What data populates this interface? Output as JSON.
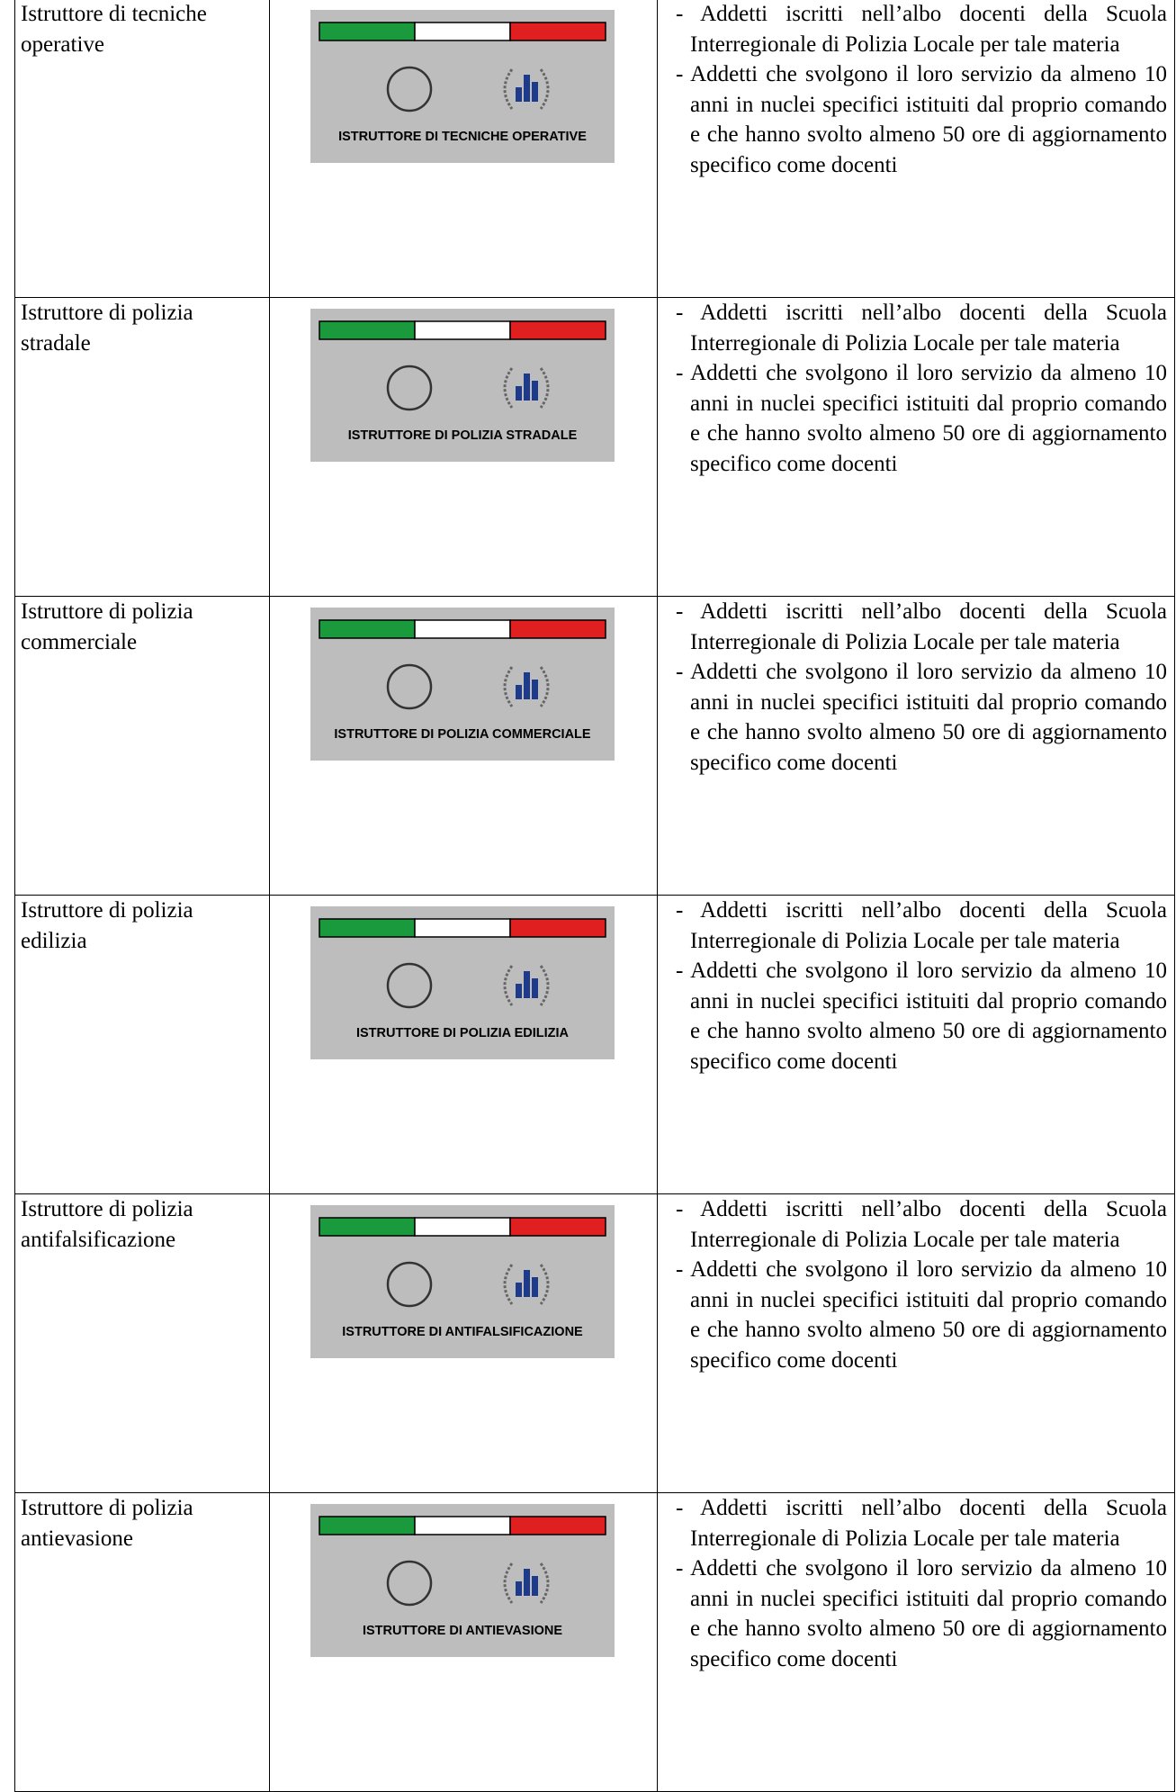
{
  "table": {
    "rows": [
      {
        "role": "Istruttore di tecniche operative",
        "badge": "ISTRUTTORE DI TECNICHE OPERATIVE",
        "requirements": [
          "- Addetti iscritti nell’albo docenti della Scuola Interregionale di Polizia Locale per tale materia",
          "- Addetti che svolgono il loro servizio da almeno 10 anni in nuclei specifici istituiti dal proprio comando e che hanno svolto almeno 50 ore di aggiornamento specifico come docenti"
        ]
      },
      {
        "role": "Istruttore di polizia stradale",
        "badge": "ISTRUTTORE DI POLIZIA STRADALE",
        "requirements": [
          "- Addetti iscritti nell’albo docenti della Scuola Interregionale di Polizia Locale per tale materia",
          "- Addetti che svolgono il loro servizio da almeno 10 anni in nuclei specifici istituiti dal proprio comando e che hanno svolto almeno 50 ore di aggiornamento specifico come docenti"
        ]
      },
      {
        "role": "Istruttore di polizia commerciale",
        "badge": "ISTRUTTORE DI POLIZIA COMMERCIALE",
        "requirements": [
          "- Addetti iscritti nell’albo docenti della Scuola Interregionale di Polizia Locale per tale materia",
          "- Addetti che svolgono il loro servizio da almeno 10 anni in nuclei specifici istituiti dal proprio comando e che hanno svolto almeno 50 ore di aggiornamento specifico come docenti"
        ]
      },
      {
        "role": "Istruttore di polizia edilizia",
        "badge": "ISTRUTTORE DI POLIZIA EDILIZIA",
        "requirements": [
          "- Addetti iscritti nell’albo docenti della Scuola Interregionale di Polizia Locale per tale materia",
          "- Addetti che svolgono il loro servizio da almeno 10 anni in nuclei specifici istituiti dal proprio comando e che hanno svolto almeno 50 ore di aggiornamento specifico come docenti"
        ]
      },
      {
        "role": "Istruttore di polizia antifalsificazione",
        "badge": "ISTRUTTORE DI ANTIFALSIFICAZIONE",
        "requirements": [
          "- Addetti iscritti nell’albo docenti della Scuola Interregionale di Polizia Locale per tale materia",
          "- Addetti che svolgono il loro servizio da almeno 10 anni in nuclei specifici istituiti dal proprio comando e che hanno svolto almeno 50 ore di aggiornamento specifico come docenti"
        ]
      },
      {
        "role": "Istruttore di polizia antievasione",
        "badge": "ISTRUTTORE DI ANTIEVASIONE",
        "requirements": [
          "- Addetti iscritti nell’albo docenti della Scuola Interregionale di Polizia Locale per tale materia",
          "- Addetti che svolgono il loro servizio da almeno 10 anni in nuclei specifici istituiti dal proprio comando e che hanno svolto almeno 50 ore di aggiornamento specifico come docenti"
        ]
      }
    ]
  }
}
